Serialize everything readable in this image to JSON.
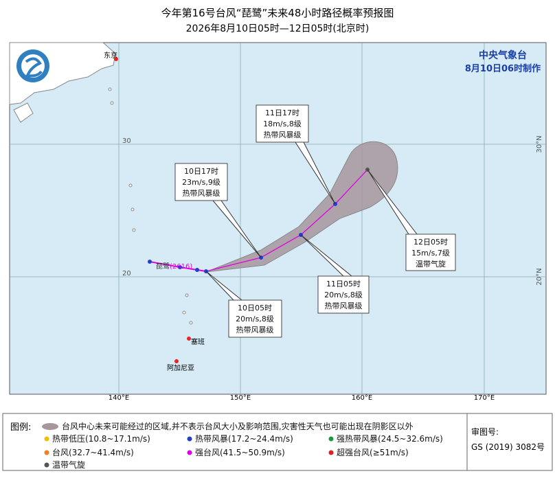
{
  "header": {
    "title": "今年第16号台风“琵鹭”未来48小时路径概率预报图",
    "subtitle": "2026年8月10日05时—12日05时(北京时)"
  },
  "agency": {
    "name": "中央气象台",
    "issued": "8月10日06时制作"
  },
  "map": {
    "lon_labels": [
      "140°E",
      "150°E",
      "160°E",
      "170°E"
    ],
    "lat_labels_left": [
      "30",
      "20"
    ],
    "lat_labels_right": [
      "30°N",
      "20°N"
    ],
    "places": [
      "东京",
      "塞班",
      "阿加尼亚"
    ],
    "typhoon": {
      "name": "琵鹭",
      "code": "(2616)"
    },
    "callouts": [
      {
        "time": "11日17时",
        "wind": "18m/s,8级",
        "level": "热带风暴级"
      },
      {
        "time": "10日17时",
        "wind": "23m/s,9级",
        "level": "热带风暴级"
      },
      {
        "time": "12日05时",
        "wind": "15m/s,7级",
        "level": "温带气旋"
      },
      {
        "time": "11日05时",
        "wind": "20m/s,8级",
        "level": "热带风暴级"
      },
      {
        "time": "10日05时",
        "wind": "20m/s,8级",
        "level": "热带风暴级"
      }
    ]
  },
  "legend": {
    "label": "图例:",
    "cone": "台风中心未来可能经过的区域,并不表示台风大小及影响范围,灾害性天气也可能出现在阴影区以外",
    "items": [
      "热带低压(10.8~17.1m/s)",
      "热带风暴(17.2~24.4m/s)",
      "强热带风暴(24.5~32.6m/s)",
      "台风(32.7~41.4m/s)",
      "强台风(41.5~50.9m/s)",
      "超强台风(≥51m/s)",
      "温带气旋"
    ]
  },
  "approval": {
    "label": "审图号:",
    "number": "GS (2019) 3082号"
  }
}
